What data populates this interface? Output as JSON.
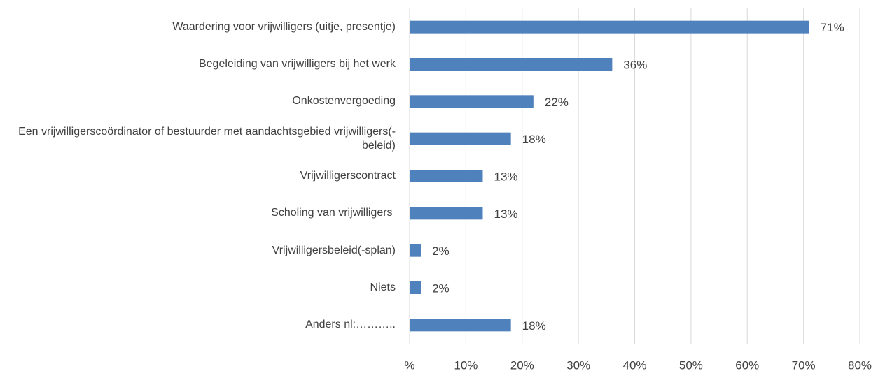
{
  "chart_data": {
    "type": "barh",
    "categories": [
      "Waardering voor vrijwilligers (uitje, presentje)",
      "Begeleiding van vrijwilligers bij het werk",
      "Onkostenvergoeding",
      "Een vrijwilligerscoördinator of bestuurder met aandachtsgebied vrijwilligers(-beleid)",
      "Vrijwilligerscontract",
      "Scholing van vrijwilligers ",
      "Vrijwilligersbeleid(-splan)",
      "Niets",
      "Anders nl:……….."
    ],
    "values": [
      71,
      36,
      22,
      18,
      13,
      13,
      2,
      2,
      18
    ],
    "value_labels": [
      "71%",
      "36%",
      "22%",
      "18%",
      "13%",
      "13%",
      "2%",
      "2%",
      "18%"
    ],
    "color": "#4f81bd",
    "xlim": [
      0,
      80
    ],
    "xticks": [
      {
        "value": 0,
        "label": "%"
      },
      {
        "value": 10,
        "label": "10%"
      },
      {
        "value": 20,
        "label": "20%"
      },
      {
        "value": 30,
        "label": "30%"
      },
      {
        "value": 40,
        "label": "40%"
      },
      {
        "value": 50,
        "label": "50%"
      },
      {
        "value": 60,
        "label": "60%"
      },
      {
        "value": 70,
        "label": "70%"
      },
      {
        "value": 80,
        "label": "80%"
      }
    ],
    "grid": true
  }
}
